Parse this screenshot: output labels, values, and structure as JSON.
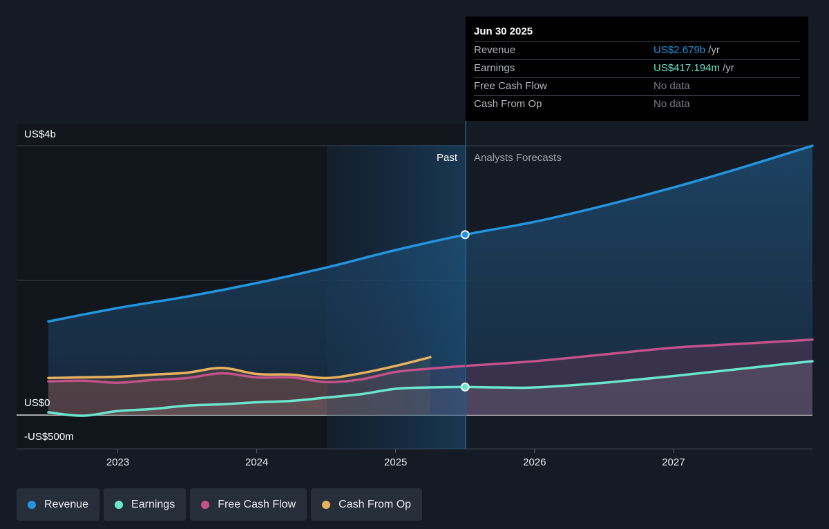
{
  "chart_data": {
    "type": "line",
    "y_axis": {
      "label_top": "US$4b",
      "label_zero": "US$0",
      "label_bottom": "-US$500m",
      "ylim": [
        -500000000,
        4000000000
      ]
    },
    "x_ticks": [
      "2023",
      "2024",
      "2025",
      "2026",
      "2027"
    ],
    "regions": {
      "past_label": "Past",
      "forecast_label": "Analysts Forecasts",
      "divider_date": 2025.5
    },
    "series": [
      {
        "name": "Revenue",
        "color": "#2394df",
        "points": [
          [
            2022.5,
            1.39
          ],
          [
            2023.0,
            1.59
          ],
          [
            2023.5,
            1.76
          ],
          [
            2024.0,
            1.96
          ],
          [
            2024.5,
            2.19
          ],
          [
            2025.0,
            2.45
          ],
          [
            2025.5,
            2.679
          ],
          [
            2026.0,
            2.87
          ],
          [
            2026.5,
            3.11
          ],
          [
            2027.0,
            3.38
          ],
          [
            2027.5,
            3.68
          ],
          [
            2028.0,
            4.0
          ]
        ]
      },
      {
        "name": "Earnings",
        "color": "#6ce5cd",
        "points": [
          [
            2022.5,
            0.04
          ],
          [
            2022.75,
            -0.01
          ],
          [
            2023.0,
            0.06
          ],
          [
            2023.25,
            0.09
          ],
          [
            2023.5,
            0.14
          ],
          [
            2023.75,
            0.16
          ],
          [
            2024.0,
            0.19
          ],
          [
            2024.25,
            0.21
          ],
          [
            2024.5,
            0.26
          ],
          [
            2024.75,
            0.31
          ],
          [
            2025.0,
            0.39
          ],
          [
            2025.25,
            0.41
          ],
          [
            2025.5,
            0.417
          ],
          [
            2025.75,
            0.41
          ],
          [
            2026.0,
            0.41
          ],
          [
            2026.5,
            0.48
          ],
          [
            2027.0,
            0.58
          ],
          [
            2027.5,
            0.69
          ],
          [
            2028.0,
            0.8
          ]
        ]
      },
      {
        "name": "Free Cash Flow",
        "color": "#c2528a",
        "points": [
          [
            2022.5,
            0.5
          ],
          [
            2022.75,
            0.51
          ],
          [
            2023.0,
            0.48
          ],
          [
            2023.25,
            0.52
          ],
          [
            2023.5,
            0.55
          ],
          [
            2023.75,
            0.62
          ],
          [
            2024.0,
            0.56
          ],
          [
            2024.25,
            0.56
          ],
          [
            2024.5,
            0.49
          ],
          [
            2024.75,
            0.53
          ],
          [
            2025.0,
            0.64
          ],
          [
            2025.25,
            0.69
          ],
          [
            2025.5,
            0.73
          ],
          [
            2026.0,
            0.8
          ],
          [
            2026.5,
            0.9
          ],
          [
            2027.0,
            1.0
          ],
          [
            2027.5,
            1.06
          ],
          [
            2028.0,
            1.12
          ]
        ]
      },
      {
        "name": "Cash From Op",
        "color": "#e8b15f",
        "points": [
          [
            2022.5,
            0.55
          ],
          [
            2022.75,
            0.56
          ],
          [
            2023.0,
            0.57
          ],
          [
            2023.25,
            0.6
          ],
          [
            2023.5,
            0.63
          ],
          [
            2023.75,
            0.7
          ],
          [
            2024.0,
            0.61
          ],
          [
            2024.25,
            0.6
          ],
          [
            2024.5,
            0.55
          ],
          [
            2024.75,
            0.62
          ],
          [
            2025.0,
            0.73
          ],
          [
            2025.25,
            0.86
          ]
        ]
      }
    ]
  },
  "tooltip": {
    "date": "Jun 30 2025",
    "rows": [
      {
        "label": "Revenue",
        "value": "US$2.679b",
        "unit": " /yr",
        "color": "#2394df"
      },
      {
        "label": "Earnings",
        "value": "US$417.194m",
        "unit": " /yr",
        "color": "#6ce5cd"
      },
      {
        "label": "Free Cash Flow",
        "value": "No data",
        "unit": "",
        "color": "#7a7e85"
      },
      {
        "label": "Cash From Op",
        "value": "No data",
        "unit": "",
        "color": "#7a7e85"
      }
    ]
  },
  "legend": [
    {
      "label": "Revenue",
      "color": "#2394df"
    },
    {
      "label": "Earnings",
      "color": "#6ce5cd"
    },
    {
      "label": "Free Cash Flow",
      "color": "#c2528a"
    },
    {
      "label": "Cash From Op",
      "color": "#e8b15f"
    }
  ]
}
